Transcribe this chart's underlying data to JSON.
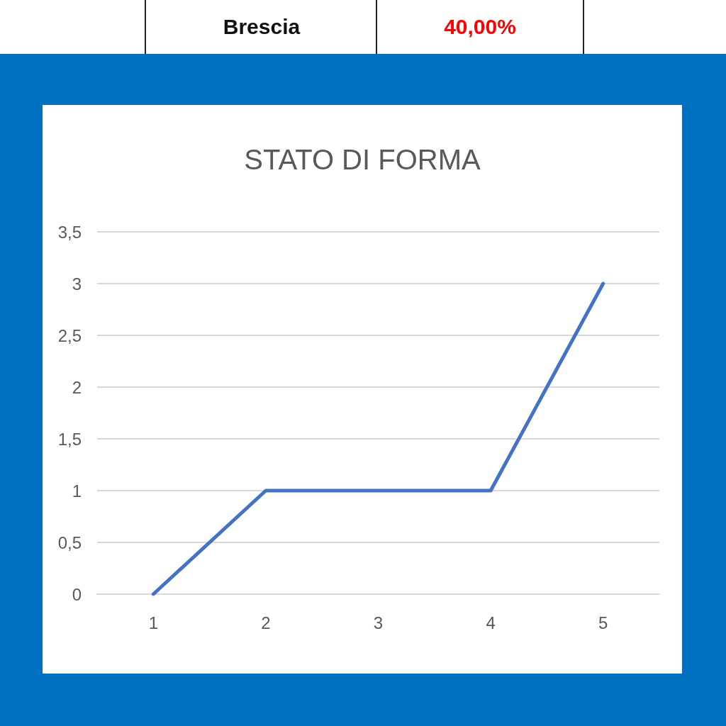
{
  "chart_data": {
    "type": "line",
    "title": "STATO DI FORMA",
    "annotations": [
      "Brescia",
      "40,00%"
    ],
    "categories": [
      "1",
      "2",
      "3",
      "4",
      "5"
    ],
    "values": [
      0,
      1,
      1,
      1,
      3
    ],
    "color": "#4472c4",
    "ylim": [
      0,
      3.5
    ],
    "yticks": [
      0,
      {
        "value": 0.5,
        "label": "0,5"
      },
      1,
      {
        "value": 1.5,
        "label": "1,5"
      },
      2,
      {
        "value": 2.5,
        "label": "2,5"
      },
      3,
      {
        "value": 3.5,
        "label": "3,5"
      }
    ],
    "grid": "y"
  }
}
